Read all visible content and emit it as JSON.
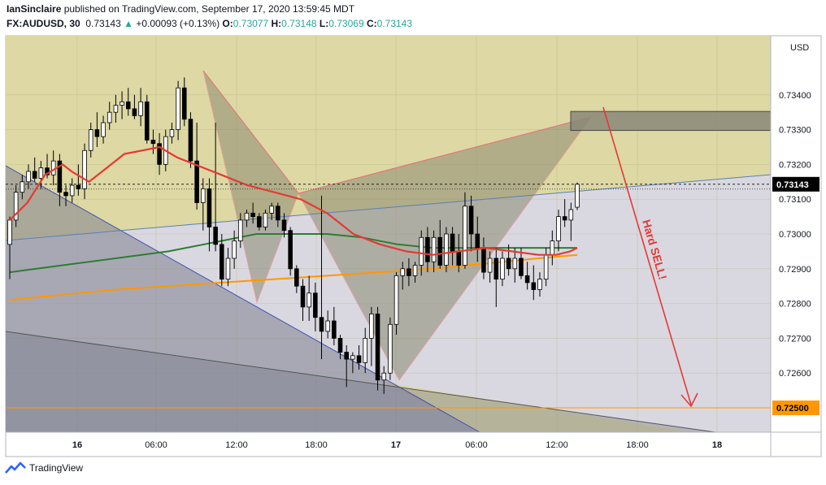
{
  "header": {
    "author": "IanSinclaire",
    "published_text": " published on TradingView.com, September 17, 2020 13:59:45 MDT",
    "symbol": "FX:AUDUSD, 30",
    "last": "0.73143",
    "change": "+0.00093 (+0.13%)",
    "o_label": "O:",
    "o_value": "0.73077",
    "h_label": "H:",
    "h_value": "0.73148",
    "l_label": "L:",
    "l_value": "0.73069",
    "c_label": "C:",
    "c_value": "0.73143"
  },
  "footer": {
    "brand": "TradingView"
  },
  "colors": {
    "up": "#26a69a",
    "bull_body": "#ffffff",
    "bear_body": "#000000",
    "ema_red": "#e53935",
    "ma_green": "#2e7d32",
    "ma_orange": "#ff9800",
    "arrow": "#e53935",
    "tan": "#ddd8a4",
    "gray": "#b8bac6"
  },
  "chart_data": {
    "type": "candlestick",
    "currency_label": "USD",
    "y_ticks": [
      "0.73400",
      "0.73300",
      "0.73200",
      "0.73100",
      "0.73000",
      "0.72900",
      "0.72800",
      "0.72700",
      "0.72600"
    ],
    "ylim": [
      0.7243,
      0.7357
    ],
    "x_ticks": [
      "16",
      "06:00",
      "12:00",
      "18:00",
      "17",
      "06:00",
      "12:00",
      "18:00",
      "18"
    ],
    "price_labels": [
      {
        "value": 0.73143,
        "text": "0.73143"
      },
      {
        "value": 0.725,
        "text": "0.72500"
      }
    ],
    "annotation": "Hard SELL!",
    "resistance_zone": [
      0.733,
      0.7335
    ],
    "candles": [
      {
        "o": 0.7297,
        "h": 0.7305,
        "l": 0.7287,
        "c": 0.7304
      },
      {
        "o": 0.7304,
        "h": 0.7314,
        "l": 0.7302,
        "c": 0.7312
      },
      {
        "o": 0.7312,
        "h": 0.7317,
        "l": 0.731,
        "c": 0.7315
      },
      {
        "o": 0.7315,
        "h": 0.732,
        "l": 0.7313,
        "c": 0.7318
      },
      {
        "o": 0.7318,
        "h": 0.7322,
        "l": 0.7315,
        "c": 0.7316
      },
      {
        "o": 0.7316,
        "h": 0.7321,
        "l": 0.7313,
        "c": 0.7319
      },
      {
        "o": 0.7319,
        "h": 0.7323,
        "l": 0.7316,
        "c": 0.7317
      },
      {
        "o": 0.7317,
        "h": 0.7324,
        "l": 0.7314,
        "c": 0.7321
      },
      {
        "o": 0.7321,
        "h": 0.7323,
        "l": 0.7308,
        "c": 0.7312
      },
      {
        "o": 0.7312,
        "h": 0.7314,
        "l": 0.7308,
        "c": 0.7311
      },
      {
        "o": 0.7311,
        "h": 0.7316,
        "l": 0.7309,
        "c": 0.7314
      },
      {
        "o": 0.7314,
        "h": 0.732,
        "l": 0.7311,
        "c": 0.7313
      },
      {
        "o": 0.7313,
        "h": 0.7326,
        "l": 0.731,
        "c": 0.7324
      },
      {
        "o": 0.7324,
        "h": 0.7332,
        "l": 0.7322,
        "c": 0.733
      },
      {
        "o": 0.733,
        "h": 0.7335,
        "l": 0.7325,
        "c": 0.7328
      },
      {
        "o": 0.7328,
        "h": 0.7334,
        "l": 0.7326,
        "c": 0.7332
      },
      {
        "o": 0.7332,
        "h": 0.7338,
        "l": 0.733,
        "c": 0.7335
      },
      {
        "o": 0.7335,
        "h": 0.734,
        "l": 0.7332,
        "c": 0.7337
      },
      {
        "o": 0.7337,
        "h": 0.7341,
        "l": 0.7333,
        "c": 0.7338
      },
      {
        "o": 0.7338,
        "h": 0.7342,
        "l": 0.7334,
        "c": 0.7336
      },
      {
        "o": 0.7336,
        "h": 0.734,
        "l": 0.7333,
        "c": 0.7334
      },
      {
        "o": 0.7334,
        "h": 0.7342,
        "l": 0.7331,
        "c": 0.7338
      },
      {
        "o": 0.7338,
        "h": 0.734,
        "l": 0.7326,
        "c": 0.7327
      },
      {
        "o": 0.7327,
        "h": 0.733,
        "l": 0.7323,
        "c": 0.7326
      },
      {
        "o": 0.7326,
        "h": 0.7329,
        "l": 0.7317,
        "c": 0.732
      },
      {
        "o": 0.732,
        "h": 0.733,
        "l": 0.7318,
        "c": 0.7328
      },
      {
        "o": 0.7328,
        "h": 0.7332,
        "l": 0.7326,
        "c": 0.733
      },
      {
        "o": 0.733,
        "h": 0.7344,
        "l": 0.7327,
        "c": 0.7342
      },
      {
        "o": 0.7342,
        "h": 0.7345,
        "l": 0.7331,
        "c": 0.7333
      },
      {
        "o": 0.7333,
        "h": 0.7335,
        "l": 0.7319,
        "c": 0.7321
      },
      {
        "o": 0.7321,
        "h": 0.7332,
        "l": 0.7307,
        "c": 0.7309
      },
      {
        "o": 0.7309,
        "h": 0.7316,
        "l": 0.7301,
        "c": 0.7313
      },
      {
        "o": 0.7313,
        "h": 0.7316,
        "l": 0.7295,
        "c": 0.7302
      },
      {
        "o": 0.7302,
        "h": 0.7332,
        "l": 0.7295,
        "c": 0.7297
      },
      {
        "o": 0.7297,
        "h": 0.73,
        "l": 0.7285,
        "c": 0.7287
      },
      {
        "o": 0.7287,
        "h": 0.7296,
        "l": 0.7285,
        "c": 0.7293
      },
      {
        "o": 0.7293,
        "h": 0.7301,
        "l": 0.729,
        "c": 0.7298
      },
      {
        "o": 0.7298,
        "h": 0.7306,
        "l": 0.7296,
        "c": 0.7304
      },
      {
        "o": 0.7304,
        "h": 0.7307,
        "l": 0.7302,
        "c": 0.7306
      },
      {
        "o": 0.7306,
        "h": 0.7309,
        "l": 0.7303,
        "c": 0.7305
      },
      {
        "o": 0.7305,
        "h": 0.7306,
        "l": 0.7301,
        "c": 0.7302
      },
      {
        "o": 0.7302,
        "h": 0.7307,
        "l": 0.7301,
        "c": 0.7306
      },
      {
        "o": 0.7306,
        "h": 0.7309,
        "l": 0.7304,
        "c": 0.7308
      },
      {
        "o": 0.7308,
        "h": 0.7309,
        "l": 0.7302,
        "c": 0.7304
      },
      {
        "o": 0.7304,
        "h": 0.7306,
        "l": 0.7299,
        "c": 0.7301
      },
      {
        "o": 0.7301,
        "h": 0.7302,
        "l": 0.7288,
        "c": 0.729
      },
      {
        "o": 0.729,
        "h": 0.7291,
        "l": 0.7283,
        "c": 0.7285
      },
      {
        "o": 0.7285,
        "h": 0.7287,
        "l": 0.7275,
        "c": 0.7279
      },
      {
        "o": 0.7279,
        "h": 0.7288,
        "l": 0.7275,
        "c": 0.7283
      },
      {
        "o": 0.7283,
        "h": 0.7286,
        "l": 0.7272,
        "c": 0.7276
      },
      {
        "o": 0.7276,
        "h": 0.7311,
        "l": 0.7264,
        "c": 0.7272
      },
      {
        "o": 0.7272,
        "h": 0.7278,
        "l": 0.727,
        "c": 0.7275
      },
      {
        "o": 0.7275,
        "h": 0.7279,
        "l": 0.7268,
        "c": 0.727
      },
      {
        "o": 0.727,
        "h": 0.7271,
        "l": 0.7264,
        "c": 0.7266
      },
      {
        "o": 0.7266,
        "h": 0.7268,
        "l": 0.7256,
        "c": 0.7264
      },
      {
        "o": 0.7264,
        "h": 0.7266,
        "l": 0.726,
        "c": 0.7265
      },
      {
        "o": 0.7265,
        "h": 0.7268,
        "l": 0.7261,
        "c": 0.7263
      },
      {
        "o": 0.7263,
        "h": 0.7273,
        "l": 0.726,
        "c": 0.727
      },
      {
        "o": 0.727,
        "h": 0.7279,
        "l": 0.7262,
        "c": 0.7277
      },
      {
        "o": 0.7277,
        "h": 0.7279,
        "l": 0.7255,
        "c": 0.7258
      },
      {
        "o": 0.7258,
        "h": 0.7262,
        "l": 0.7254,
        "c": 0.726
      },
      {
        "o": 0.726,
        "h": 0.7276,
        "l": 0.7258,
        "c": 0.7274
      },
      {
        "o": 0.7274,
        "h": 0.7289,
        "l": 0.7271,
        "c": 0.7288
      },
      {
        "o": 0.7288,
        "h": 0.7292,
        "l": 0.7284,
        "c": 0.729
      },
      {
        "o": 0.729,
        "h": 0.7293,
        "l": 0.7285,
        "c": 0.7288
      },
      {
        "o": 0.7288,
        "h": 0.7292,
        "l": 0.7286,
        "c": 0.7291
      },
      {
        "o": 0.7291,
        "h": 0.7301,
        "l": 0.7288,
        "c": 0.7299
      },
      {
        "o": 0.7299,
        "h": 0.7302,
        "l": 0.7289,
        "c": 0.7292
      },
      {
        "o": 0.7292,
        "h": 0.7301,
        "l": 0.7289,
        "c": 0.7299
      },
      {
        "o": 0.7299,
        "h": 0.7304,
        "l": 0.729,
        "c": 0.7291
      },
      {
        "o": 0.7291,
        "h": 0.7302,
        "l": 0.7289,
        "c": 0.73
      },
      {
        "o": 0.73,
        "h": 0.7302,
        "l": 0.7291,
        "c": 0.7295
      },
      {
        "o": 0.7295,
        "h": 0.73,
        "l": 0.7289,
        "c": 0.7291
      },
      {
        "o": 0.7291,
        "h": 0.7312,
        "l": 0.729,
        "c": 0.7308
      },
      {
        "o": 0.7308,
        "h": 0.7311,
        "l": 0.7295,
        "c": 0.73
      },
      {
        "o": 0.73,
        "h": 0.7305,
        "l": 0.7292,
        "c": 0.7296
      },
      {
        "o": 0.7296,
        "h": 0.7299,
        "l": 0.7287,
        "c": 0.7289
      },
      {
        "o": 0.7289,
        "h": 0.7295,
        "l": 0.7286,
        "c": 0.7293
      },
      {
        "o": 0.7293,
        "h": 0.7296,
        "l": 0.7279,
        "c": 0.7287
      },
      {
        "o": 0.7287,
        "h": 0.7295,
        "l": 0.7285,
        "c": 0.7293
      },
      {
        "o": 0.7293,
        "h": 0.7297,
        "l": 0.7288,
        "c": 0.729
      },
      {
        "o": 0.729,
        "h": 0.7296,
        "l": 0.7286,
        "c": 0.7293
      },
      {
        "o": 0.7293,
        "h": 0.7296,
        "l": 0.7287,
        "c": 0.7288
      },
      {
        "o": 0.7288,
        "h": 0.7292,
        "l": 0.7284,
        "c": 0.7286
      },
      {
        "o": 0.7286,
        "h": 0.7291,
        "l": 0.7281,
        "c": 0.7284
      },
      {
        "o": 0.7284,
        "h": 0.7289,
        "l": 0.7282,
        "c": 0.7287
      },
      {
        "o": 0.7287,
        "h": 0.7296,
        "l": 0.7285,
        "c": 0.7294
      },
      {
        "o": 0.7294,
        "h": 0.7301,
        "l": 0.7291,
        "c": 0.7298
      },
      {
        "o": 0.7298,
        "h": 0.7307,
        "l": 0.7295,
        "c": 0.7305
      },
      {
        "o": 0.7305,
        "h": 0.731,
        "l": 0.7302,
        "c": 0.7304
      },
      {
        "o": 0.7304,
        "h": 0.7309,
        "l": 0.7298,
        "c": 0.7307
      },
      {
        "o": 0.73077,
        "h": 0.73148,
        "l": 0.73069,
        "c": 0.73143
      }
    ],
    "ema": [
      [
        0,
        0.7304
      ],
      [
        10,
        0.7309
      ],
      [
        20,
        0.7317
      ],
      [
        30,
        0.732
      ],
      [
        35,
        0.7318
      ],
      [
        45,
        0.7315
      ],
      [
        55,
        0.7319
      ],
      [
        65,
        0.7323
      ],
      [
        75,
        0.7324
      ],
      [
        85,
        0.7325
      ],
      [
        95,
        0.7322
      ],
      [
        105,
        0.732
      ],
      [
        120,
        0.7317
      ],
      [
        135,
        0.7314
      ],
      [
        150,
        0.7312
      ],
      [
        165,
        0.731
      ],
      [
        180,
        0.7306
      ],
      [
        195,
        0.73
      ],
      [
        210,
        0.7297
      ],
      [
        225,
        0.7295
      ],
      [
        240,
        0.7294
      ],
      [
        255,
        0.7295
      ],
      [
        270,
        0.7296
      ],
      [
        285,
        0.7295
      ],
      [
        300,
        0.7294
      ],
      [
        310,
        0.7294
      ],
      [
        318,
        0.7295
      ],
      [
        322,
        0.7296
      ]
    ],
    "ma_green": [
      [
        0,
        0.7289
      ],
      [
        30,
        0.7291
      ],
      [
        60,
        0.7293
      ],
      [
        90,
        0.7295
      ],
      [
        120,
        0.7298
      ],
      [
        140,
        0.73
      ],
      [
        160,
        0.73
      ],
      [
        180,
        0.73
      ],
      [
        200,
        0.7299
      ],
      [
        220,
        0.7297
      ],
      [
        240,
        0.7296
      ],
      [
        260,
        0.7296
      ],
      [
        280,
        0.7296
      ],
      [
        300,
        0.7296
      ],
      [
        322,
        0.7296
      ]
    ],
    "ma_orange": [
      [
        0,
        0.7281
      ],
      [
        60,
        0.7284
      ],
      [
        120,
        0.7286
      ],
      [
        180,
        0.7288
      ],
      [
        240,
        0.729
      ],
      [
        300,
        0.7293
      ],
      [
        322,
        0.7294
      ]
    ]
  }
}
